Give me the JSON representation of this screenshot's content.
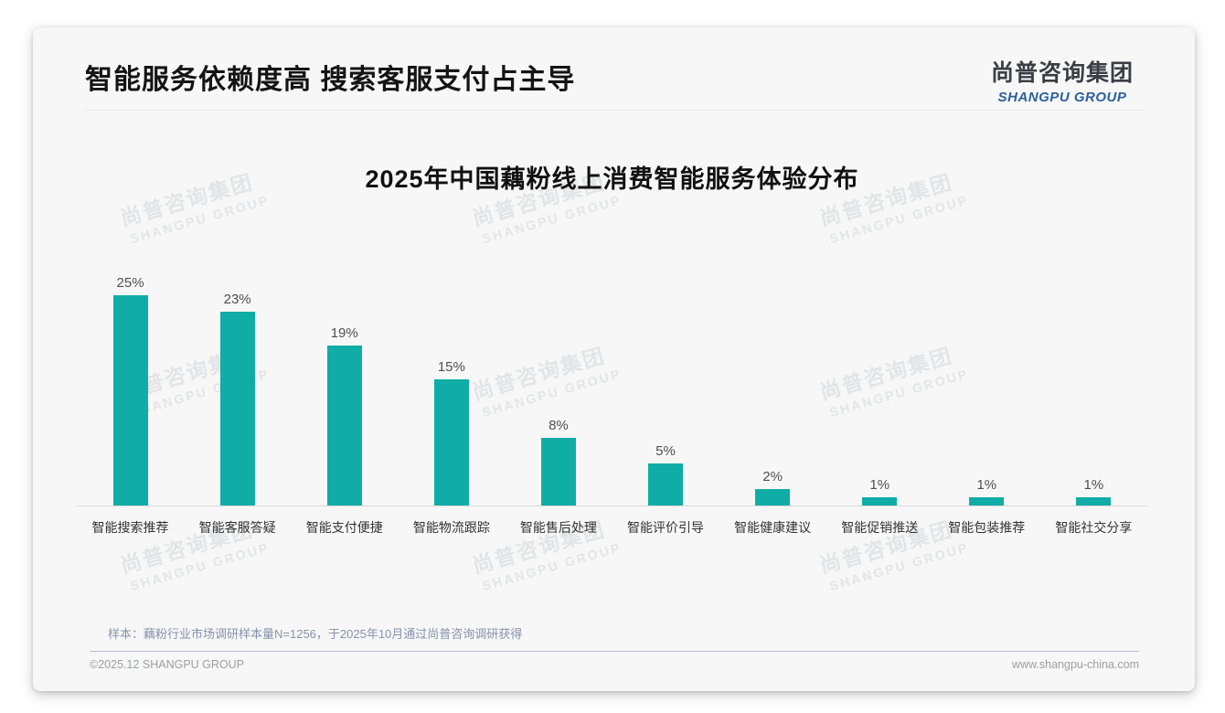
{
  "header": {
    "title": "智能服务依赖度高 搜索客服支付占主导",
    "logo_zh": "尚普咨询集团",
    "logo_en": "SHANGPU GROUP"
  },
  "watermark": {
    "line1": "尚普咨询集团",
    "line2": "SHANGPU GROUP"
  },
  "chart_data": {
    "type": "bar",
    "title": "2025年中国藕粉线上消费智能服务体验分布",
    "categories": [
      "智能搜索推荐",
      "智能客服答疑",
      "智能支付便捷",
      "智能物流跟踪",
      "智能售后处理",
      "智能评价引导",
      "智能健康建议",
      "智能促销推送",
      "智能包装推荐",
      "智能社交分享"
    ],
    "values": [
      25,
      23,
      19,
      15,
      8,
      5,
      2,
      1,
      1,
      1
    ],
    "unit": "%",
    "ylim": [
      0,
      25
    ],
    "bar_color": "#0fada6",
    "data_labels": true,
    "grid": false,
    "legend": false,
    "xlabel": "",
    "ylabel": ""
  },
  "footnote": "样本：藕粉行业市场调研样本量N=1256，于2025年10月通过尚普咨询调研获得",
  "footer": {
    "left": "©2025.12 SHANGPU GROUP",
    "right": "www.shangpu-china.com"
  },
  "colors": {
    "bar_teal": "#0fada6",
    "logo_blue": "#2d5f9b",
    "card_background": "#f7f7f7",
    "footnote_blue_gray": "#8593ac"
  }
}
